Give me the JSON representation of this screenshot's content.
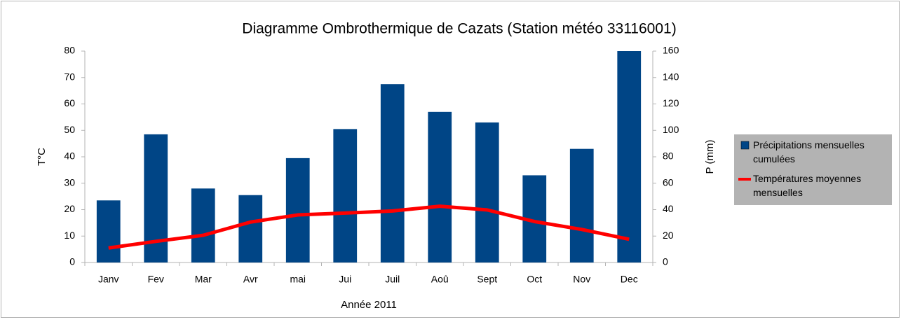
{
  "chart_data": {
    "type": "bar_line",
    "title": "Diagramme Ombrothermique de Cazats (Station météo 33116001)",
    "x_label": "Année 2011",
    "y_label": "T°C",
    "y2_label": "P (mm)",
    "categories": [
      "Janv",
      "Fev",
      "Mar",
      "Avr",
      "mai",
      "Jui",
      "Juil",
      "Aoû",
      "Sept",
      "Oct",
      "Nov",
      "Dec"
    ],
    "series": [
      {
        "name": "Précipitations mensuelles cumulées",
        "type": "bar",
        "color": "#004586",
        "axis": "y2",
        "values": [
          47,
          97,
          56,
          51,
          79,
          101,
          135,
          114,
          106,
          66,
          86,
          160
        ]
      },
      {
        "name": "Températures moyennes mensuelles",
        "type": "line",
        "color": "#ff0000",
        "axis": "y",
        "values": [
          5.5,
          8,
          10.3,
          15.3,
          18,
          18.7,
          19.5,
          21.3,
          19.9,
          15.5,
          12.5,
          8.8
        ]
      }
    ],
    "ylim": [
      0,
      80
    ],
    "yticks": [
      0,
      10,
      20,
      30,
      40,
      50,
      60,
      70,
      80
    ],
    "y2lim": [
      0,
      160
    ],
    "y2ticks": [
      0,
      20,
      40,
      60,
      80,
      100,
      120,
      140,
      160
    ],
    "legend": "right"
  }
}
